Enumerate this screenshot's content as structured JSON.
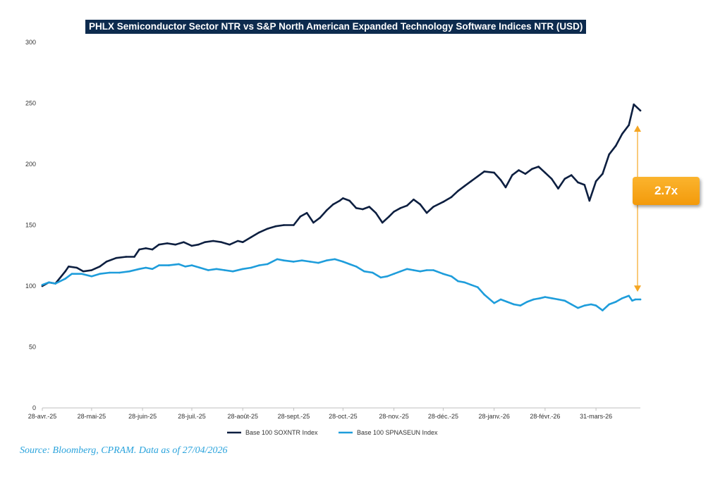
{
  "source_note": "Source: Bloomberg, CPRAM. Data as of 27/04/2026",
  "annotation": {
    "label": "2.7x",
    "color": "#f5a623"
  },
  "chart_data": {
    "type": "line",
    "title": "PHLX Semiconductor Sector NTR vs S&P North American Expanded Technology Software Indices NTR (USD)",
    "xlabel": "",
    "ylabel": "",
    "ylim": [
      0,
      300
    ],
    "yticks": [
      0,
      50,
      100,
      150,
      200,
      250,
      300
    ],
    "xlim": [
      "2025-04-28",
      "2026-04-27"
    ],
    "xticks": [
      {
        "date": "2025-04-28",
        "label": "28-avr.-25"
      },
      {
        "date": "2025-05-28",
        "label": "28-mai-25"
      },
      {
        "date": "2025-06-28",
        "label": "28-juin-25"
      },
      {
        "date": "2025-07-28",
        "label": "28-juil.-25"
      },
      {
        "date": "2025-08-28",
        "label": "28-août-25"
      },
      {
        "date": "2025-09-28",
        "label": "28-sept.-25"
      },
      {
        "date": "2025-10-28",
        "label": "28-oct.-25"
      },
      {
        "date": "2025-11-28",
        "label": "28-nov.-25"
      },
      {
        "date": "2025-12-28",
        "label": "28-déc.-25"
      },
      {
        "date": "2026-01-28",
        "label": "28-janv.-26"
      },
      {
        "date": "2026-02-28",
        "label": "28-févr.-26"
      },
      {
        "date": "2026-03-31",
        "label": "31-mars-26"
      }
    ],
    "grid": false,
    "legend_position": "bottom",
    "series": [
      {
        "name": "Base 100 SOXNTR Index",
        "color": "#0d1f40",
        "points": [
          [
            "2025-04-28",
            100
          ],
          [
            "2025-05-02",
            103
          ],
          [
            "2025-05-06",
            102
          ],
          [
            "2025-05-12",
            112
          ],
          [
            "2025-05-14",
            116
          ],
          [
            "2025-05-19",
            115
          ],
          [
            "2025-05-23",
            112
          ],
          [
            "2025-05-28",
            113
          ],
          [
            "2025-06-02",
            116
          ],
          [
            "2025-06-06",
            120
          ],
          [
            "2025-06-12",
            123
          ],
          [
            "2025-06-18",
            124
          ],
          [
            "2025-06-23",
            124
          ],
          [
            "2025-06-26",
            130
          ],
          [
            "2025-06-30",
            131
          ],
          [
            "2025-07-04",
            130
          ],
          [
            "2025-07-08",
            134
          ],
          [
            "2025-07-13",
            135
          ],
          [
            "2025-07-18",
            134
          ],
          [
            "2025-07-23",
            136
          ],
          [
            "2025-07-28",
            133
          ],
          [
            "2025-08-01",
            134
          ],
          [
            "2025-08-05",
            136
          ],
          [
            "2025-08-10",
            137
          ],
          [
            "2025-08-15",
            136
          ],
          [
            "2025-08-20",
            134
          ],
          [
            "2025-08-25",
            137
          ],
          [
            "2025-08-28",
            136
          ],
          [
            "2025-09-02",
            140
          ],
          [
            "2025-09-07",
            144
          ],
          [
            "2025-09-12",
            147
          ],
          [
            "2025-09-17",
            149
          ],
          [
            "2025-09-22",
            150
          ],
          [
            "2025-09-28",
            150
          ],
          [
            "2025-10-02",
            157
          ],
          [
            "2025-10-06",
            160
          ],
          [
            "2025-10-10",
            152
          ],
          [
            "2025-10-14",
            156
          ],
          [
            "2025-10-18",
            162
          ],
          [
            "2025-10-22",
            167
          ],
          [
            "2025-10-26",
            170
          ],
          [
            "2025-10-28",
            172
          ],
          [
            "2025-11-01",
            170
          ],
          [
            "2025-11-05",
            164
          ],
          [
            "2025-11-09",
            163
          ],
          [
            "2025-11-13",
            165
          ],
          [
            "2025-11-17",
            160
          ],
          [
            "2025-11-21",
            152
          ],
          [
            "2025-11-25",
            157
          ],
          [
            "2025-11-28",
            161
          ],
          [
            "2025-12-02",
            164
          ],
          [
            "2025-12-06",
            166
          ],
          [
            "2025-12-10",
            171
          ],
          [
            "2025-12-14",
            167
          ],
          [
            "2025-12-18",
            160
          ],
          [
            "2025-12-22",
            165
          ],
          [
            "2025-12-28",
            169
          ],
          [
            "2026-01-02",
            173
          ],
          [
            "2026-01-06",
            178
          ],
          [
            "2026-01-10",
            182
          ],
          [
            "2026-01-14",
            186
          ],
          [
            "2026-01-18",
            190
          ],
          [
            "2026-01-22",
            194
          ],
          [
            "2026-01-28",
            193
          ],
          [
            "2026-02-01",
            187
          ],
          [
            "2026-02-04",
            181
          ],
          [
            "2026-02-08",
            191
          ],
          [
            "2026-02-12",
            195
          ],
          [
            "2026-02-16",
            192
          ],
          [
            "2026-02-20",
            196
          ],
          [
            "2026-02-24",
            198
          ],
          [
            "2026-02-28",
            193
          ],
          [
            "2026-03-04",
            188
          ],
          [
            "2026-03-08",
            180
          ],
          [
            "2026-03-12",
            188
          ],
          [
            "2026-03-16",
            191
          ],
          [
            "2026-03-20",
            185
          ],
          [
            "2026-03-24",
            183
          ],
          [
            "2026-03-27",
            170
          ],
          [
            "2026-03-31",
            186
          ],
          [
            "2026-04-04",
            192
          ],
          [
            "2026-04-08",
            208
          ],
          [
            "2026-04-12",
            215
          ],
          [
            "2026-04-16",
            225
          ],
          [
            "2026-04-20",
            232
          ],
          [
            "2026-04-23",
            249
          ],
          [
            "2026-04-27",
            244
          ]
        ]
      },
      {
        "name": "Base 100 SPNASEUN Index",
        "color": "#1e9ddb",
        "points": [
          [
            "2025-04-28",
            101
          ],
          [
            "2025-05-02",
            103
          ],
          [
            "2025-05-06",
            102
          ],
          [
            "2025-05-12",
            106
          ],
          [
            "2025-05-16",
            110
          ],
          [
            "2025-05-22",
            110
          ],
          [
            "2025-05-28",
            108
          ],
          [
            "2025-06-02",
            110
          ],
          [
            "2025-06-08",
            111
          ],
          [
            "2025-06-14",
            111
          ],
          [
            "2025-06-20",
            112
          ],
          [
            "2025-06-26",
            114
          ],
          [
            "2025-06-30",
            115
          ],
          [
            "2025-07-04",
            114
          ],
          [
            "2025-07-08",
            117
          ],
          [
            "2025-07-14",
            117
          ],
          [
            "2025-07-20",
            118
          ],
          [
            "2025-07-24",
            116
          ],
          [
            "2025-07-28",
            117
          ],
          [
            "2025-08-02",
            115
          ],
          [
            "2025-08-07",
            113
          ],
          [
            "2025-08-12",
            114
          ],
          [
            "2025-08-17",
            113
          ],
          [
            "2025-08-22",
            112
          ],
          [
            "2025-08-28",
            114
          ],
          [
            "2025-09-02",
            115
          ],
          [
            "2025-09-07",
            117
          ],
          [
            "2025-09-12",
            118
          ],
          [
            "2025-09-18",
            122
          ],
          [
            "2025-09-22",
            121
          ],
          [
            "2025-09-28",
            120
          ],
          [
            "2025-10-03",
            121
          ],
          [
            "2025-10-08",
            120
          ],
          [
            "2025-10-13",
            119
          ],
          [
            "2025-10-18",
            121
          ],
          [
            "2025-10-23",
            122
          ],
          [
            "2025-10-28",
            120
          ],
          [
            "2025-11-01",
            118
          ],
          [
            "2025-11-05",
            116
          ],
          [
            "2025-11-10",
            112
          ],
          [
            "2025-11-15",
            111
          ],
          [
            "2025-11-20",
            107
          ],
          [
            "2025-11-24",
            108
          ],
          [
            "2025-11-28",
            110
          ],
          [
            "2025-12-02",
            112
          ],
          [
            "2025-12-06",
            114
          ],
          [
            "2025-12-10",
            113
          ],
          [
            "2025-12-14",
            112
          ],
          [
            "2025-12-18",
            113
          ],
          [
            "2025-12-22",
            113
          ],
          [
            "2025-12-28",
            110
          ],
          [
            "2026-01-02",
            108
          ],
          [
            "2026-01-06",
            104
          ],
          [
            "2026-01-10",
            103
          ],
          [
            "2026-01-14",
            101
          ],
          [
            "2026-01-18",
            99
          ],
          [
            "2026-01-22",
            93
          ],
          [
            "2026-01-28",
            86
          ],
          [
            "2026-02-01",
            89
          ],
          [
            "2026-02-05",
            87
          ],
          [
            "2026-02-09",
            85
          ],
          [
            "2026-02-13",
            84
          ],
          [
            "2026-02-17",
            87
          ],
          [
            "2026-02-21",
            89
          ],
          [
            "2026-02-25",
            90
          ],
          [
            "2026-02-28",
            91
          ],
          [
            "2026-03-04",
            90
          ],
          [
            "2026-03-08",
            89
          ],
          [
            "2026-03-12",
            88
          ],
          [
            "2026-03-16",
            85
          ],
          [
            "2026-03-20",
            82
          ],
          [
            "2026-03-24",
            84
          ],
          [
            "2026-03-28",
            85
          ],
          [
            "2026-03-31",
            84
          ],
          [
            "2026-04-04",
            80
          ],
          [
            "2026-04-08",
            85
          ],
          [
            "2026-04-12",
            87
          ],
          [
            "2026-04-16",
            90
          ],
          [
            "2026-04-20",
            92
          ],
          [
            "2026-04-22",
            88
          ],
          [
            "2026-04-24",
            89
          ],
          [
            "2026-04-27",
            89
          ]
        ]
      }
    ]
  }
}
